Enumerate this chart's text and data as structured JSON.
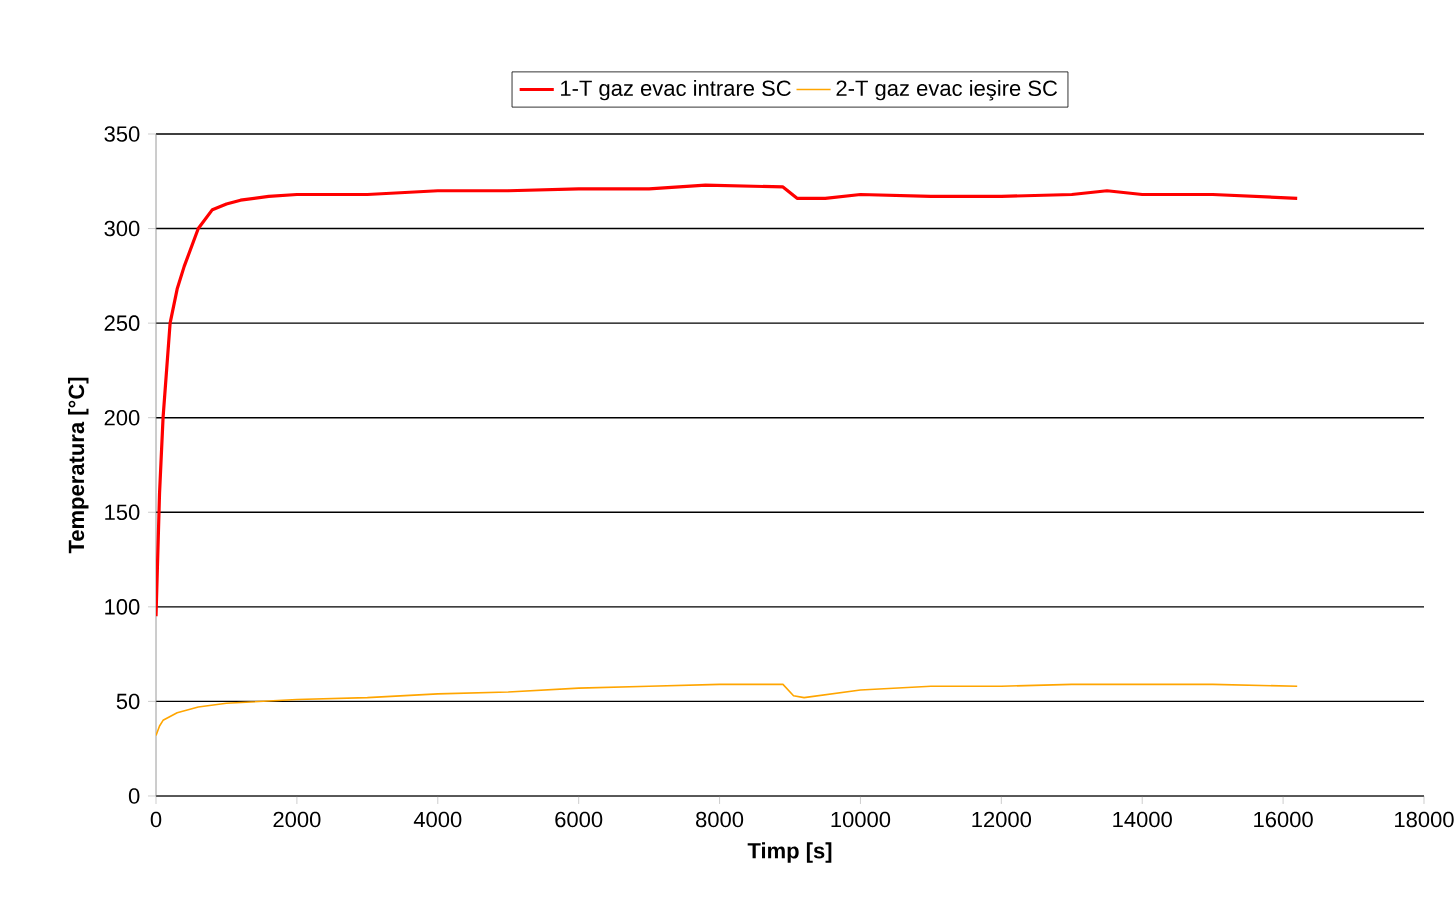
{
  "chart_data": {
    "type": "line",
    "xlabel": "Timp [s]",
    "ylabel": "Temperatura [°C]",
    "xlim": [
      0,
      18000
    ],
    "xticks": [
      0,
      2000,
      4000,
      6000,
      8000,
      10000,
      12000,
      14000,
      16000,
      18000
    ],
    "ylim": [
      0,
      350
    ],
    "yticks": [
      0,
      50,
      100,
      150,
      200,
      250,
      300,
      350
    ],
    "grid": "y",
    "legend": "top",
    "marker": "none",
    "line_style": "solid",
    "series": [
      {
        "name": "1-T gaz evac intrare SC",
        "color": "#ff0000",
        "x": [
          0,
          50,
          100,
          200,
          300,
          400,
          600,
          800,
          1000,
          1200,
          1600,
          2000,
          3000,
          4000,
          5000,
          6000,
          7000,
          7800,
          8900,
          9100,
          9500,
          10000,
          11000,
          12000,
          13000,
          13500,
          14000,
          15000,
          16200
        ],
        "values": [
          95,
          160,
          200,
          250,
          268,
          280,
          300,
          310,
          313,
          315,
          317,
          318,
          318,
          320,
          320,
          321,
          321,
          323,
          322,
          316,
          316,
          318,
          317,
          317,
          318,
          320,
          318,
          318,
          316
        ]
      },
      {
        "name": "2-T gaz evac ieşire SC",
        "color": "#ffa500",
        "x": [
          0,
          50,
          100,
          300,
          600,
          1000,
          2000,
          3000,
          4000,
          5000,
          6000,
          7000,
          8000,
          8900,
          9050,
          9200,
          10000,
          11000,
          12000,
          13000,
          14000,
          15000,
          16200
        ],
        "values": [
          32,
          37,
          40,
          44,
          47,
          49,
          51,
          52,
          54,
          55,
          57,
          58,
          59,
          59,
          53,
          52,
          56,
          58,
          58,
          59,
          59,
          59,
          58
        ]
      }
    ]
  }
}
